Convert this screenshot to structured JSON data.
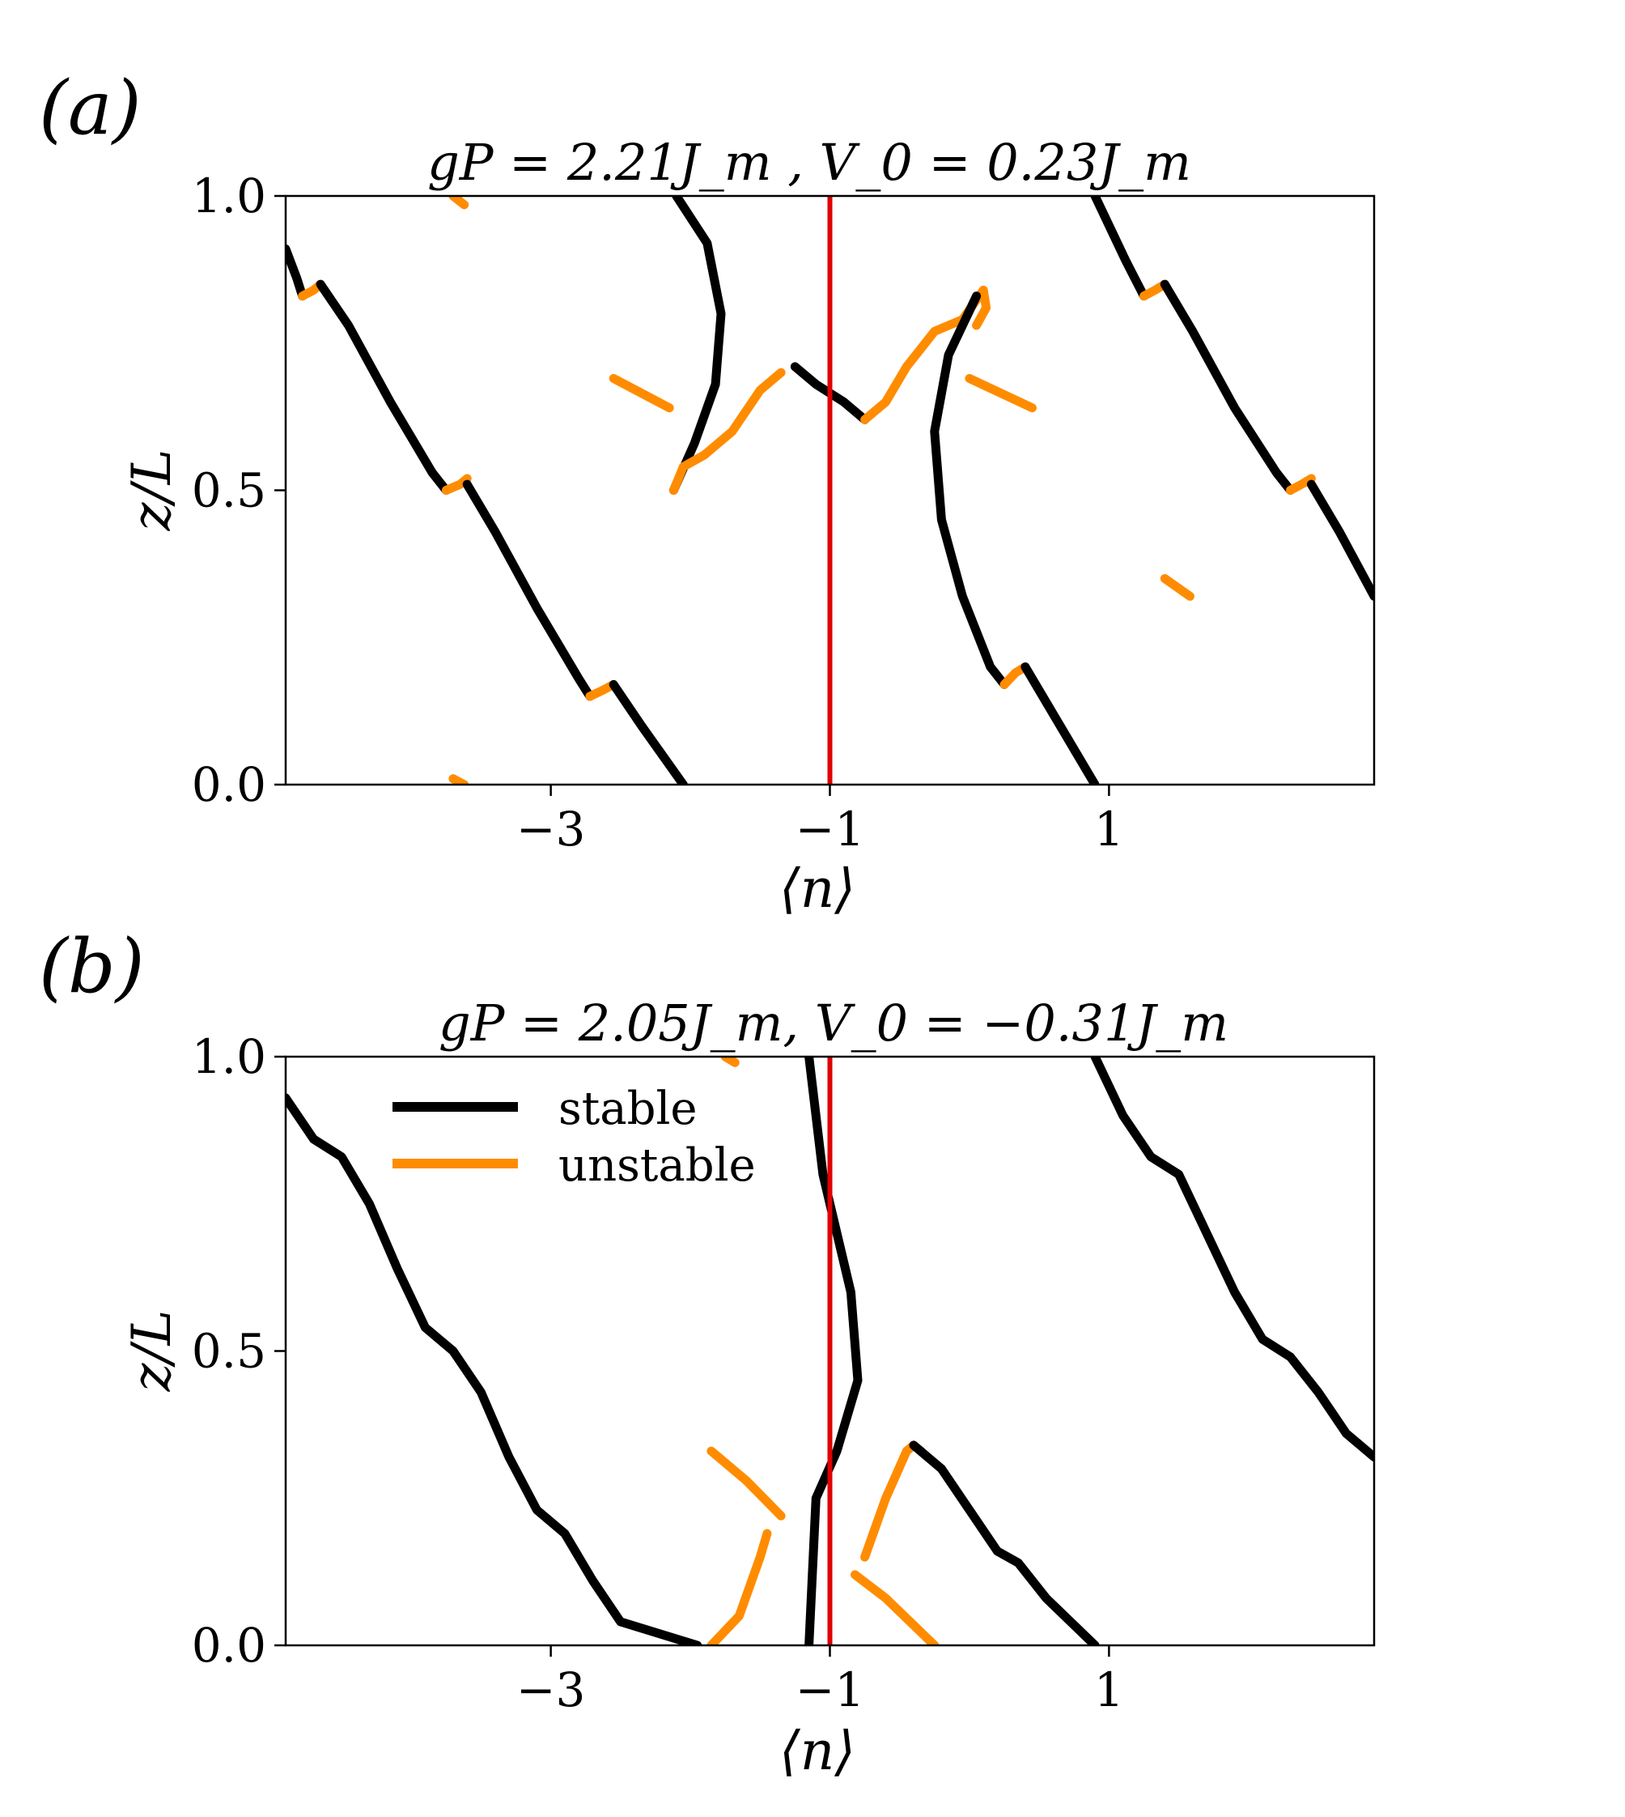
{
  "colors": {
    "stable": "#000000",
    "unstable": "#ff8c00",
    "reference": "#e00000"
  },
  "chart_data": [
    {
      "type": "line",
      "panel_label": "(a)",
      "title": "gP = 2.21J_m ,  V_0 = 0.23J_m",
      "xlabel": "⟨n⟩",
      "ylabel": "z/L",
      "xlim": [
        -4.9,
        2.9
      ],
      "ylim": [
        0.0,
        1.0
      ],
      "xticks": [
        -3,
        -1,
        1
      ],
      "xtick_labels": [
        "−3",
        "−1",
        "1"
      ],
      "yticks": [
        0.0,
        0.5,
        1.0
      ],
      "ytick_labels": [
        "0.0",
        "0.5",
        "1.0"
      ],
      "grid": false,
      "vline": -1,
      "series": [
        {
          "name": "stable",
          "kind": "stable",
          "points": [
            [
              -4.9,
              0.91
            ],
            [
              -4.82,
              0.86
            ],
            [
              -4.78,
              0.83
            ]
          ]
        },
        {
          "name": "",
          "kind": "unstable",
          "points": [
            [
              -4.78,
              0.83
            ],
            [
              -4.7,
              0.84
            ],
            [
              -4.65,
              0.85
            ]
          ]
        },
        {
          "name": "",
          "kind": "stable",
          "points": [
            [
              -4.65,
              0.85
            ],
            [
              -4.45,
              0.78
            ],
            [
              -4.15,
              0.65
            ],
            [
              -3.85,
              0.53
            ],
            [
              -3.75,
              0.5
            ]
          ]
        },
        {
          "name": "",
          "kind": "unstable",
          "points": [
            [
              -3.75,
              0.5
            ],
            [
              -3.65,
              0.51
            ],
            [
              -3.6,
              0.52
            ]
          ]
        },
        {
          "name": "",
          "kind": "stable",
          "points": [
            [
              -3.6,
              0.51
            ],
            [
              -3.4,
              0.43
            ],
            [
              -3.1,
              0.3
            ],
            [
              -2.8,
              0.18
            ],
            [
              -2.72,
              0.15
            ]
          ]
        },
        {
          "name": "",
          "kind": "unstable",
          "points": [
            [
              -2.72,
              0.15
            ],
            [
              -2.63,
              0.16
            ],
            [
              -2.55,
              0.17
            ]
          ]
        },
        {
          "name": "",
          "kind": "stable",
          "points": [
            [
              -2.55,
              0.17
            ],
            [
              -2.35,
              0.1
            ],
            [
              -2.05,
              0.0
            ]
          ]
        },
        {
          "name": "",
          "kind": "unstable",
          "points": [
            [
              -3.7,
              0.01
            ],
            [
              -3.62,
              0.0
            ]
          ]
        },
        {
          "name": "",
          "kind": "unstable",
          "points": [
            [
              -3.7,
              1.0
            ],
            [
              -3.62,
              0.985
            ]
          ]
        },
        {
          "name": "",
          "kind": "stable",
          "points": [
            [
              -2.1,
              1.0
            ],
            [
              -1.88,
              0.92
            ],
            [
              -1.78,
              0.8
            ],
            [
              -1.82,
              0.68
            ],
            [
              -1.97,
              0.58
            ],
            [
              -2.12,
              0.5
            ]
          ]
        },
        {
          "name": "",
          "kind": "unstable",
          "points": [
            [
              -2.12,
              0.5
            ],
            [
              -2.05,
              0.54
            ],
            [
              -1.9,
              0.56
            ],
            [
              -1.7,
              0.6
            ],
            [
              -1.5,
              0.67
            ],
            [
              -1.35,
              0.7
            ]
          ]
        },
        {
          "name": "",
          "kind": "unstable",
          "points": [
            [
              -2.55,
              0.69
            ],
            [
              -2.15,
              0.64
            ]
          ]
        },
        {
          "name": "",
          "kind": "stable",
          "points": [
            [
              -1.25,
              0.71
            ],
            [
              -1.1,
              0.68
            ],
            [
              -0.9,
              0.65
            ],
            [
              -0.75,
              0.62
            ]
          ]
        },
        {
          "name": "",
          "kind": "unstable",
          "points": [
            [
              -0.75,
              0.62
            ],
            [
              -0.6,
              0.65
            ],
            [
              -0.45,
              0.71
            ],
            [
              -0.25,
              0.77
            ],
            [
              -0.05,
              0.79
            ],
            [
              0.1,
              0.84
            ],
            [
              0.12,
              0.81
            ],
            [
              0.05,
              0.78
            ]
          ]
        },
        {
          "name": "",
          "kind": "stable",
          "points": [
            [
              0.05,
              0.83
            ],
            [
              -0.15,
              0.73
            ],
            [
              -0.25,
              0.6
            ],
            [
              -0.2,
              0.45
            ],
            [
              -0.05,
              0.32
            ],
            [
              0.15,
              0.2
            ],
            [
              0.25,
              0.17
            ]
          ]
        },
        {
          "name": "",
          "kind": "unstable",
          "points": [
            [
              0.25,
              0.17
            ],
            [
              0.33,
              0.19
            ],
            [
              0.4,
              0.2
            ]
          ]
        },
        {
          "name": "",
          "kind": "stable",
          "points": [
            [
              0.4,
              0.2
            ],
            [
              0.6,
              0.12
            ],
            [
              0.9,
              0.0
            ]
          ]
        },
        {
          "name": "",
          "kind": "unstable",
          "points": [
            [
              0.0,
              0.69
            ],
            [
              0.45,
              0.64
            ]
          ]
        },
        {
          "name": "",
          "kind": "unstable",
          "points": [
            [
              1.4,
              0.35
            ],
            [
              1.58,
              0.32
            ]
          ]
        },
        {
          "name": "",
          "kind": "stable",
          "points": [
            [
              0.9,
              1.0
            ],
            [
              1.12,
              0.89
            ],
            [
              1.25,
              0.83
            ]
          ]
        },
        {
          "name": "",
          "kind": "unstable",
          "points": [
            [
              1.25,
              0.83
            ],
            [
              1.33,
              0.84
            ],
            [
              1.4,
              0.85
            ]
          ]
        },
        {
          "name": "",
          "kind": "stable",
          "points": [
            [
              1.4,
              0.85
            ],
            [
              1.6,
              0.77
            ],
            [
              1.9,
              0.64
            ],
            [
              2.2,
              0.53
            ],
            [
              2.3,
              0.5
            ]
          ]
        },
        {
          "name": "",
          "kind": "unstable",
          "points": [
            [
              2.3,
              0.5
            ],
            [
              2.38,
              0.51
            ],
            [
              2.45,
              0.52
            ]
          ]
        },
        {
          "name": "",
          "kind": "stable",
          "points": [
            [
              2.45,
              0.51
            ],
            [
              2.65,
              0.43
            ],
            [
              2.9,
              0.32
            ]
          ]
        }
      ]
    },
    {
      "type": "line",
      "panel_label": "(b)",
      "title": "gP = 2.05J_m,  V_0 = −0.31J_m",
      "xlabel": "⟨n⟩",
      "ylabel": "z/L",
      "xlim": [
        -4.9,
        2.9
      ],
      "ylim": [
        0.0,
        1.0
      ],
      "xticks": [
        -3,
        -1,
        1
      ],
      "xtick_labels": [
        "−3",
        "−1",
        "1"
      ],
      "yticks": [
        0.0,
        0.5,
        1.0
      ],
      "ytick_labels": [
        "0.0",
        "0.5",
        "1.0"
      ],
      "grid": false,
      "vline": -1,
      "legend": {
        "position": "upper-left",
        "entries": [
          "stable",
          "unstable"
        ]
      },
      "series": [
        {
          "name": "",
          "kind": "stable",
          "points": [
            [
              -4.9,
              0.93
            ],
            [
              -4.7,
              0.86
            ],
            [
              -4.5,
              0.83
            ],
            [
              -4.3,
              0.75
            ],
            [
              -4.1,
              0.64
            ],
            [
              -3.9,
              0.54
            ],
            [
              -3.7,
              0.5
            ],
            [
              -3.5,
              0.43
            ],
            [
              -3.3,
              0.32
            ],
            [
              -3.1,
              0.23
            ],
            [
              -2.9,
              0.19
            ],
            [
              -2.7,
              0.11
            ],
            [
              -2.5,
              0.04
            ],
            [
              -1.95,
              0.0
            ]
          ]
        },
        {
          "name": "",
          "kind": "unstable",
          "points": [
            [
              -1.85,
              0.0
            ],
            [
              -1.65,
              0.05
            ],
            [
              -1.5,
              0.15
            ],
            [
              -1.45,
              0.19
            ]
          ]
        },
        {
          "name": "",
          "kind": "unstable",
          "points": [
            [
              -1.85,
              0.33
            ],
            [
              -1.6,
              0.28
            ],
            [
              -1.35,
              0.22
            ]
          ]
        },
        {
          "name": "",
          "kind": "stable",
          "points": [
            [
              -1.15,
              0.0
            ],
            [
              -1.1,
              0.25
            ],
            [
              -0.95,
              0.33
            ],
            [
              -0.8,
              0.45
            ],
            [
              -0.85,
              0.6
            ],
            [
              -1.05,
              0.8
            ],
            [
              -1.15,
              1.0
            ]
          ]
        },
        {
          "name": "",
          "kind": "unstable",
          "points": [
            [
              -0.82,
              0.12
            ],
            [
              -0.6,
              0.08
            ],
            [
              -0.25,
              0.0
            ]
          ]
        },
        {
          "name": "",
          "kind": "unstable",
          "points": [
            [
              -0.75,
              0.15
            ],
            [
              -0.6,
              0.25
            ],
            [
              -0.45,
              0.33
            ],
            [
              -0.4,
              0.34
            ]
          ]
        },
        {
          "name": "",
          "kind": "stable",
          "points": [
            [
              -0.4,
              0.34
            ],
            [
              -0.2,
              0.3
            ],
            [
              0.0,
              0.23
            ],
            [
              0.2,
              0.16
            ],
            [
              0.35,
              0.14
            ],
            [
              0.55,
              0.08
            ],
            [
              0.9,
              0.0
            ]
          ]
        },
        {
          "name": "",
          "kind": "unstable",
          "points": [
            [
              -1.75,
              1.0
            ],
            [
              -1.68,
              0.99
            ]
          ]
        },
        {
          "name": "",
          "kind": "stable",
          "points": [
            [
              0.9,
              1.0
            ],
            [
              1.1,
              0.9
            ],
            [
              1.3,
              0.83
            ],
            [
              1.5,
              0.8
            ],
            [
              1.7,
              0.7
            ],
            [
              1.9,
              0.6
            ],
            [
              2.1,
              0.52
            ],
            [
              2.3,
              0.49
            ],
            [
              2.5,
              0.43
            ],
            [
              2.7,
              0.36
            ],
            [
              2.9,
              0.32
            ]
          ]
        }
      ]
    }
  ]
}
